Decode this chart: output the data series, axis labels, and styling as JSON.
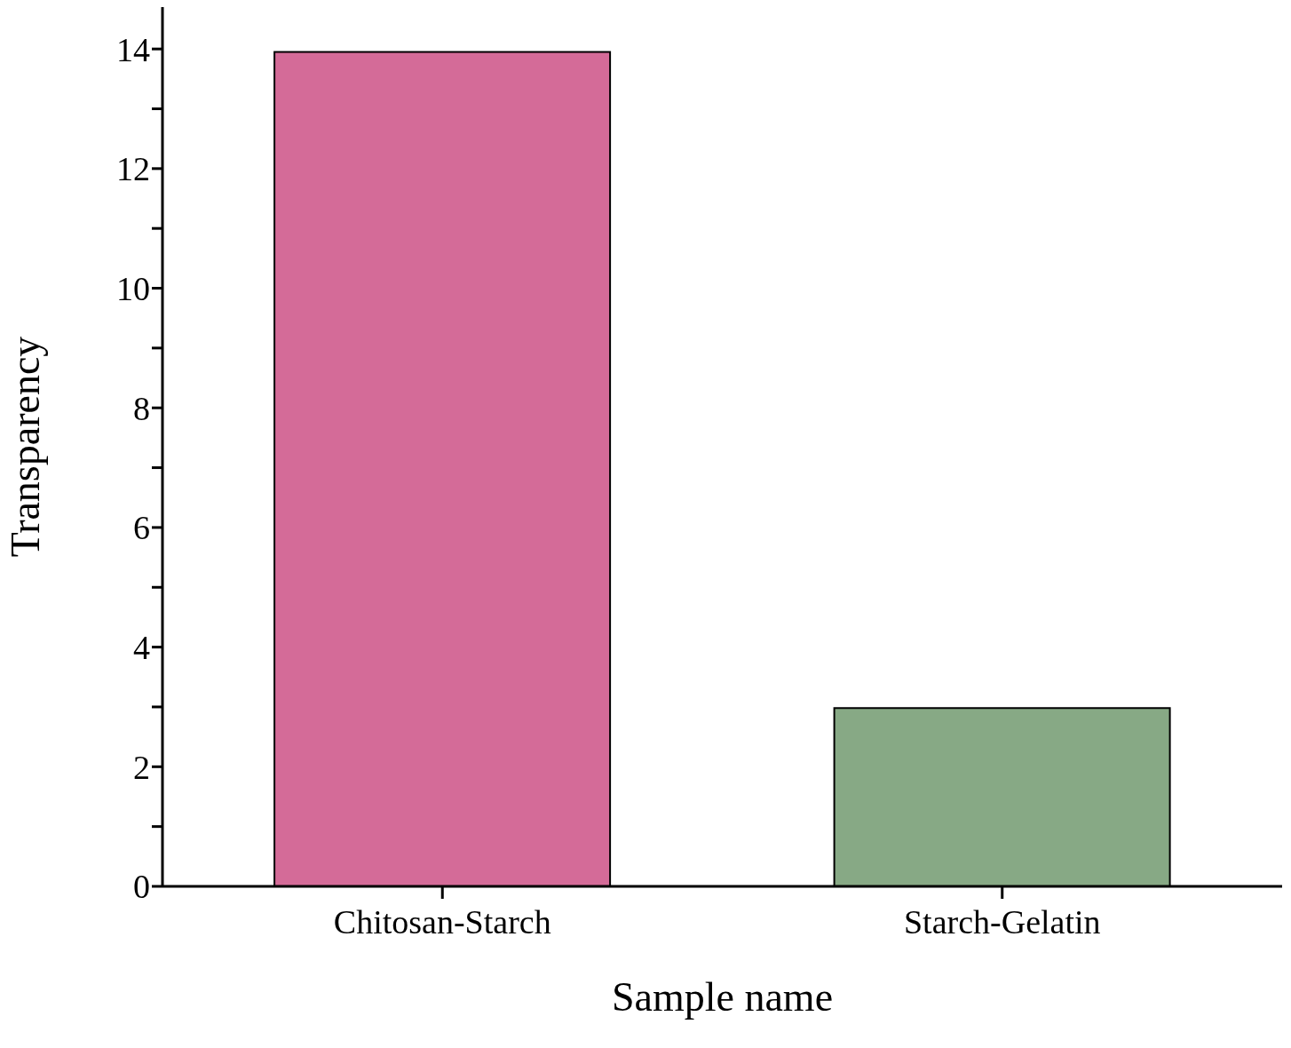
{
  "chart_data": {
    "type": "bar",
    "xlabel": "Sample name",
    "ylabel": "Transparency",
    "categories": [
      "Chitosan-Starch",
      "Starch-Gelatin"
    ],
    "values": [
      13.95,
      2.98
    ],
    "colors": [
      "#d46b98",
      "#87a985"
    ],
    "ylim": [
      0,
      14.7
    ],
    "yticks": [
      0,
      {
        "value": 1,
        "label": null
      },
      2,
      {
        "value": 3,
        "label": null
      },
      4,
      {
        "value": 5,
        "label": null
      },
      6,
      {
        "value": 7,
        "label": null
      },
      8,
      {
        "value": 9,
        "label": null
      },
      10,
      {
        "value": 11,
        "label": null
      },
      12,
      {
        "value": 13,
        "label": null
      },
      14
    ],
    "grid": false,
    "legend": false
  }
}
